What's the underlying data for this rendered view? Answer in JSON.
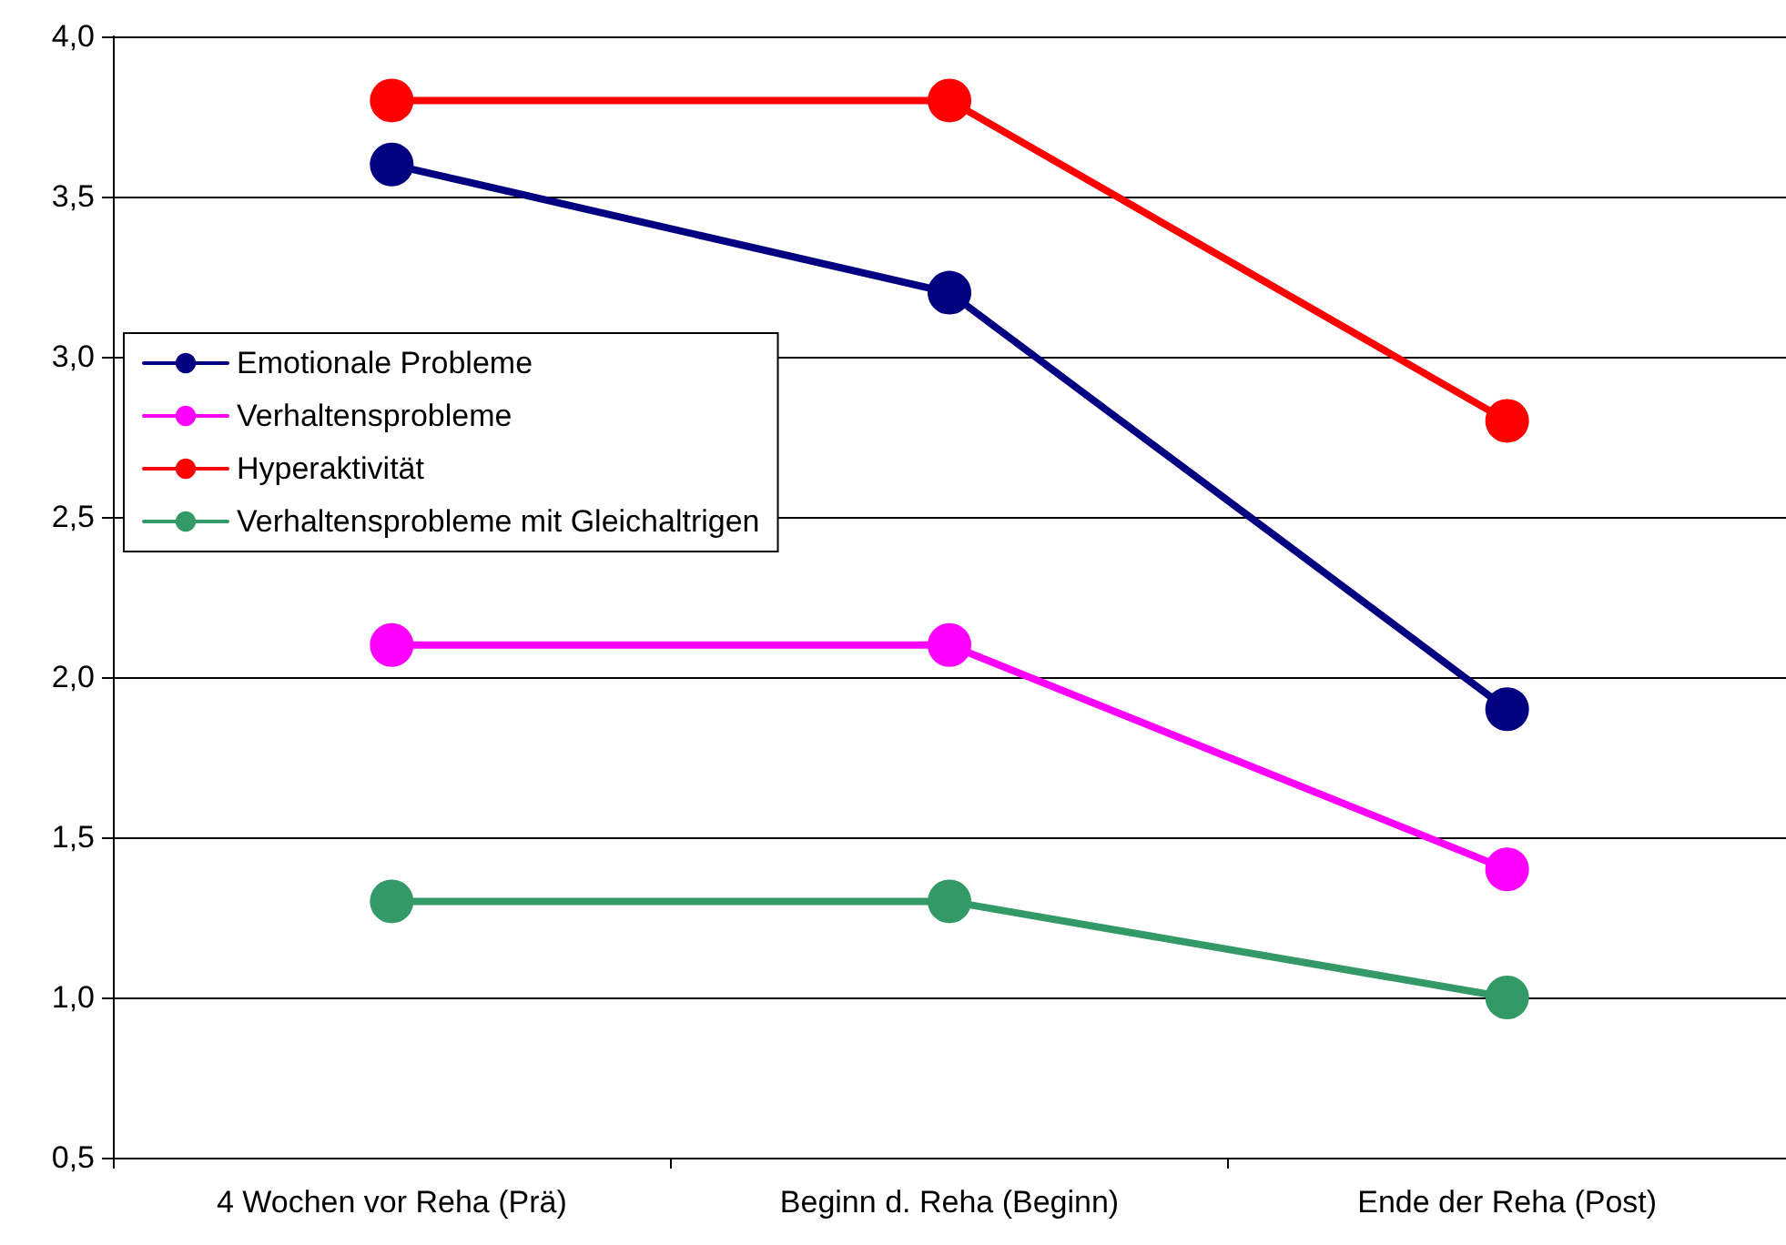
{
  "chart_data": {
    "type": "line",
    "categories": [
      "4 Wochen vor Reha (Prä)",
      "Beginn d. Reha (Beginn)",
      "Ende der Reha (Post)"
    ],
    "series": [
      {
        "name": "Emotionale Probleme",
        "color": "#000080",
        "values": [
          3.6,
          3.2,
          1.9
        ]
      },
      {
        "name": "Verhaltensprobleme",
        "color": "#ff00ff",
        "values": [
          2.1,
          2.1,
          1.4
        ]
      },
      {
        "name": "Hyperaktivität",
        "color": "#ff0000",
        "values": [
          3.8,
          3.8,
          2.8
        ]
      },
      {
        "name": "Verhaltensprobleme mit Gleichaltrigen",
        "color": "#339966",
        "values": [
          1.3,
          1.3,
          1.0
        ]
      }
    ],
    "ylim": [
      0.5,
      4.0
    ],
    "yticks": [
      {
        "value": 0.5,
        "label": "0,5"
      },
      {
        "value": 1.0,
        "label": "1,0"
      },
      {
        "value": 1.5,
        "label": "1,5"
      },
      {
        "value": 2.0,
        "label": "2,0"
      },
      {
        "value": 2.5,
        "label": "2,5"
      },
      {
        "value": 3.0,
        "label": "3,0"
      },
      {
        "value": 3.5,
        "label": "3,5"
      },
      {
        "value": 4.0,
        "label": "4,0"
      }
    ],
    "grid": "y",
    "legend": "left",
    "marker": "circle",
    "line_style": "solid"
  }
}
